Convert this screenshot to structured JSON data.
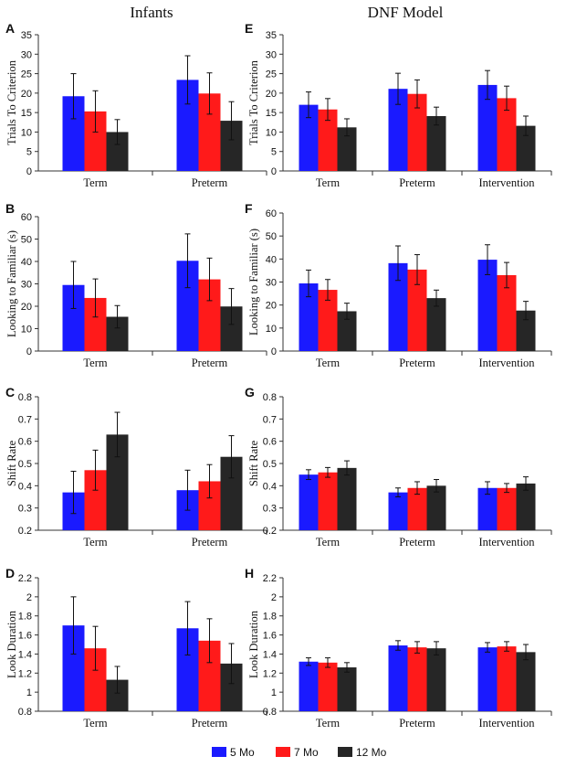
{
  "column_titles": [
    "Infants",
    "DNF Model"
  ],
  "legend": [
    {
      "name": "5 Mo",
      "color": "#1a1aff"
    },
    {
      "name": "7 Mo",
      "color": "#ff1a1a"
    },
    {
      "name": "12 Mo",
      "color": "#262626"
    }
  ],
  "chart_data": [
    {
      "panel": "A",
      "type": "bar",
      "ylabel": "Trials To Criterion",
      "ylim": [
        0,
        35
      ],
      "yticks": [
        "0",
        "5",
        "10",
        "15",
        "20",
        "25",
        "30",
        "35"
      ],
      "tickvals": [
        0,
        5,
        10,
        15,
        20,
        25,
        30,
        35
      ],
      "categories": [
        "Term",
        "Preterm"
      ],
      "series": [
        {
          "name": "5 Mo",
          "values": [
            19.2,
            23.4
          ],
          "errors": [
            5.8,
            6.2
          ]
        },
        {
          "name": "7 Mo",
          "values": [
            15.3,
            19.9
          ],
          "errors": [
            5.3,
            5.3
          ]
        },
        {
          "name": "12 Mo",
          "values": [
            10.0,
            12.9
          ],
          "errors": [
            3.2,
            4.9
          ]
        }
      ]
    },
    {
      "panel": "E",
      "type": "bar",
      "ylabel": "Trials To Criterion",
      "ylim": [
        0,
        35
      ],
      "yticks": [
        "0",
        "5",
        "10",
        "15",
        "20",
        "25",
        "30",
        "35"
      ],
      "tickvals": [
        0,
        5,
        10,
        15,
        20,
        25,
        30,
        35
      ],
      "categories": [
        "Term",
        "Preterm",
        "Intervention"
      ],
      "series": [
        {
          "name": "5 Mo",
          "values": [
            17.0,
            21.1,
            22.1
          ],
          "errors": [
            3.3,
            4.0,
            3.7
          ]
        },
        {
          "name": "7 Mo",
          "values": [
            15.8,
            19.8,
            18.7
          ],
          "errors": [
            2.8,
            3.6,
            3.1
          ]
        },
        {
          "name": "12 Mo",
          "values": [
            11.2,
            14.1,
            11.6
          ],
          "errors": [
            2.2,
            2.3,
            2.5
          ]
        }
      ]
    },
    {
      "panel": "B",
      "type": "bar",
      "ylabel": "Looking to Familiar (s)",
      "ylim": [
        0,
        60
      ],
      "yticks": [
        "0",
        "10",
        "20",
        "30",
        "40",
        "50",
        "60"
      ],
      "tickvals": [
        0,
        10,
        20,
        30,
        40,
        50,
        60
      ],
      "categories": [
        "Term",
        "Preterm"
      ],
      "series": [
        {
          "name": "5 Mo",
          "values": [
            29.5,
            40.3
          ],
          "errors": [
            10.5,
            12.0
          ]
        },
        {
          "name": "7 Mo",
          "values": [
            23.7,
            32.0
          ],
          "errors": [
            8.5,
            9.5
          ]
        },
        {
          "name": "12 Mo",
          "values": [
            15.3,
            19.9
          ],
          "errors": [
            5.0,
            8.0
          ]
        }
      ]
    },
    {
      "panel": "F",
      "type": "bar",
      "ylabel": "Looking to Familiar (s)",
      "ylim": [
        0,
        60
      ],
      "yticks": [
        "0",
        "10",
        "20",
        "30",
        "40",
        "50",
        "60"
      ],
      "tickvals": [
        0,
        10,
        20,
        30,
        40,
        50,
        60
      ],
      "categories": [
        "Term",
        "Preterm",
        "Intervention"
      ],
      "series": [
        {
          "name": "5 Mo",
          "values": [
            29.4,
            38.2,
            39.7
          ],
          "errors": [
            5.8,
            7.5,
            6.5
          ]
        },
        {
          "name": "7 Mo",
          "values": [
            26.6,
            35.4,
            33.0
          ],
          "errors": [
            4.5,
            6.5,
            5.5
          ]
        },
        {
          "name": "12 Mo",
          "values": [
            17.3,
            23.0,
            17.6
          ],
          "errors": [
            3.5,
            3.5,
            4.0
          ]
        }
      ]
    },
    {
      "panel": "C",
      "type": "bar",
      "ylabel": "Shift Rate",
      "ylim": [
        0.2,
        0.8
      ],
      "yticks": [
        "0.2",
        "0.3",
        "0.4",
        "0.5",
        "0.6",
        "0.7",
        "0.8"
      ],
      "tickvals": [
        0.2,
        0.3,
        0.4,
        0.5,
        0.6,
        0.7,
        0.8
      ],
      "categories": [
        "Term",
        "Preterm"
      ],
      "series": [
        {
          "name": "5 Mo",
          "values": [
            0.37,
            0.38
          ],
          "errors": [
            0.095,
            0.09
          ]
        },
        {
          "name": "7 Mo",
          "values": [
            0.47,
            0.42
          ],
          "errors": [
            0.09,
            0.075
          ]
        },
        {
          "name": "12 Mo",
          "values": [
            0.63,
            0.53
          ],
          "errors": [
            0.1,
            0.095
          ]
        }
      ]
    },
    {
      "panel": "G",
      "type": "bar",
      "ylabel": "Shift Rate",
      "ylim": [
        0.2,
        0.8
      ],
      "yticks": [
        "0.2",
        "0.3",
        "0.4",
        "0.5",
        "0.6",
        "0.7",
        "0.8"
      ],
      "tickvals": [
        0.2,
        0.3,
        0.4,
        0.5,
        0.6,
        0.7,
        0.8
      ],
      "categories": [
        "Term",
        "Preterm",
        "Intervention"
      ],
      "series": [
        {
          "name": "5 Mo",
          "values": [
            0.45,
            0.37,
            0.39
          ],
          "errors": [
            0.022,
            0.02,
            0.028
          ]
        },
        {
          "name": "7 Mo",
          "values": [
            0.46,
            0.39,
            0.39
          ],
          "errors": [
            0.022,
            0.028,
            0.02
          ]
        },
        {
          "name": "12 Mo",
          "values": [
            0.48,
            0.4,
            0.41
          ],
          "errors": [
            0.032,
            0.028,
            0.03
          ]
        }
      ]
    },
    {
      "panel": "D",
      "type": "bar",
      "ylabel": "Look Duration",
      "ylim": [
        0.8,
        2.2
      ],
      "yticks": [
        "0.8",
        "1",
        "1.2",
        "1.4",
        "1.6",
        "1.8",
        "2",
        "2.2"
      ],
      "tickvals": [
        0.8,
        1.0,
        1.2,
        1.4,
        1.6,
        1.8,
        2.0,
        2.2
      ],
      "categories": [
        "Term",
        "Preterm"
      ],
      "series": [
        {
          "name": "5 Mo",
          "values": [
            1.7,
            1.67
          ],
          "errors": [
            0.3,
            0.28
          ]
        },
        {
          "name": "7 Mo",
          "values": [
            1.46,
            1.54
          ],
          "errors": [
            0.23,
            0.23
          ]
        },
        {
          "name": "12 Mo",
          "values": [
            1.13,
            1.3
          ],
          "errors": [
            0.14,
            0.21
          ]
        }
      ]
    },
    {
      "panel": "H",
      "type": "bar",
      "ylabel": "Look Duration",
      "ylim": [
        0.8,
        2.2
      ],
      "yticks": [
        "0.8",
        "1",
        "1.2",
        "1.4",
        "1.6",
        "1.8",
        "2",
        "2.2"
      ],
      "tickvals": [
        0.8,
        1.0,
        1.2,
        1.4,
        1.6,
        1.8,
        2.0,
        2.2
      ],
      "categories": [
        "Term",
        "Preterm",
        "Intervention"
      ],
      "series": [
        {
          "name": "5 Mo",
          "values": [
            1.32,
            1.49,
            1.47
          ],
          "errors": [
            0.04,
            0.05,
            0.05
          ]
        },
        {
          "name": "7 Mo",
          "values": [
            1.31,
            1.47,
            1.48
          ],
          "errors": [
            0.05,
            0.06,
            0.05
          ]
        },
        {
          "name": "12 Mo",
          "values": [
            1.26,
            1.46,
            1.42
          ],
          "errors": [
            0.05,
            0.07,
            0.08
          ]
        }
      ]
    }
  ]
}
